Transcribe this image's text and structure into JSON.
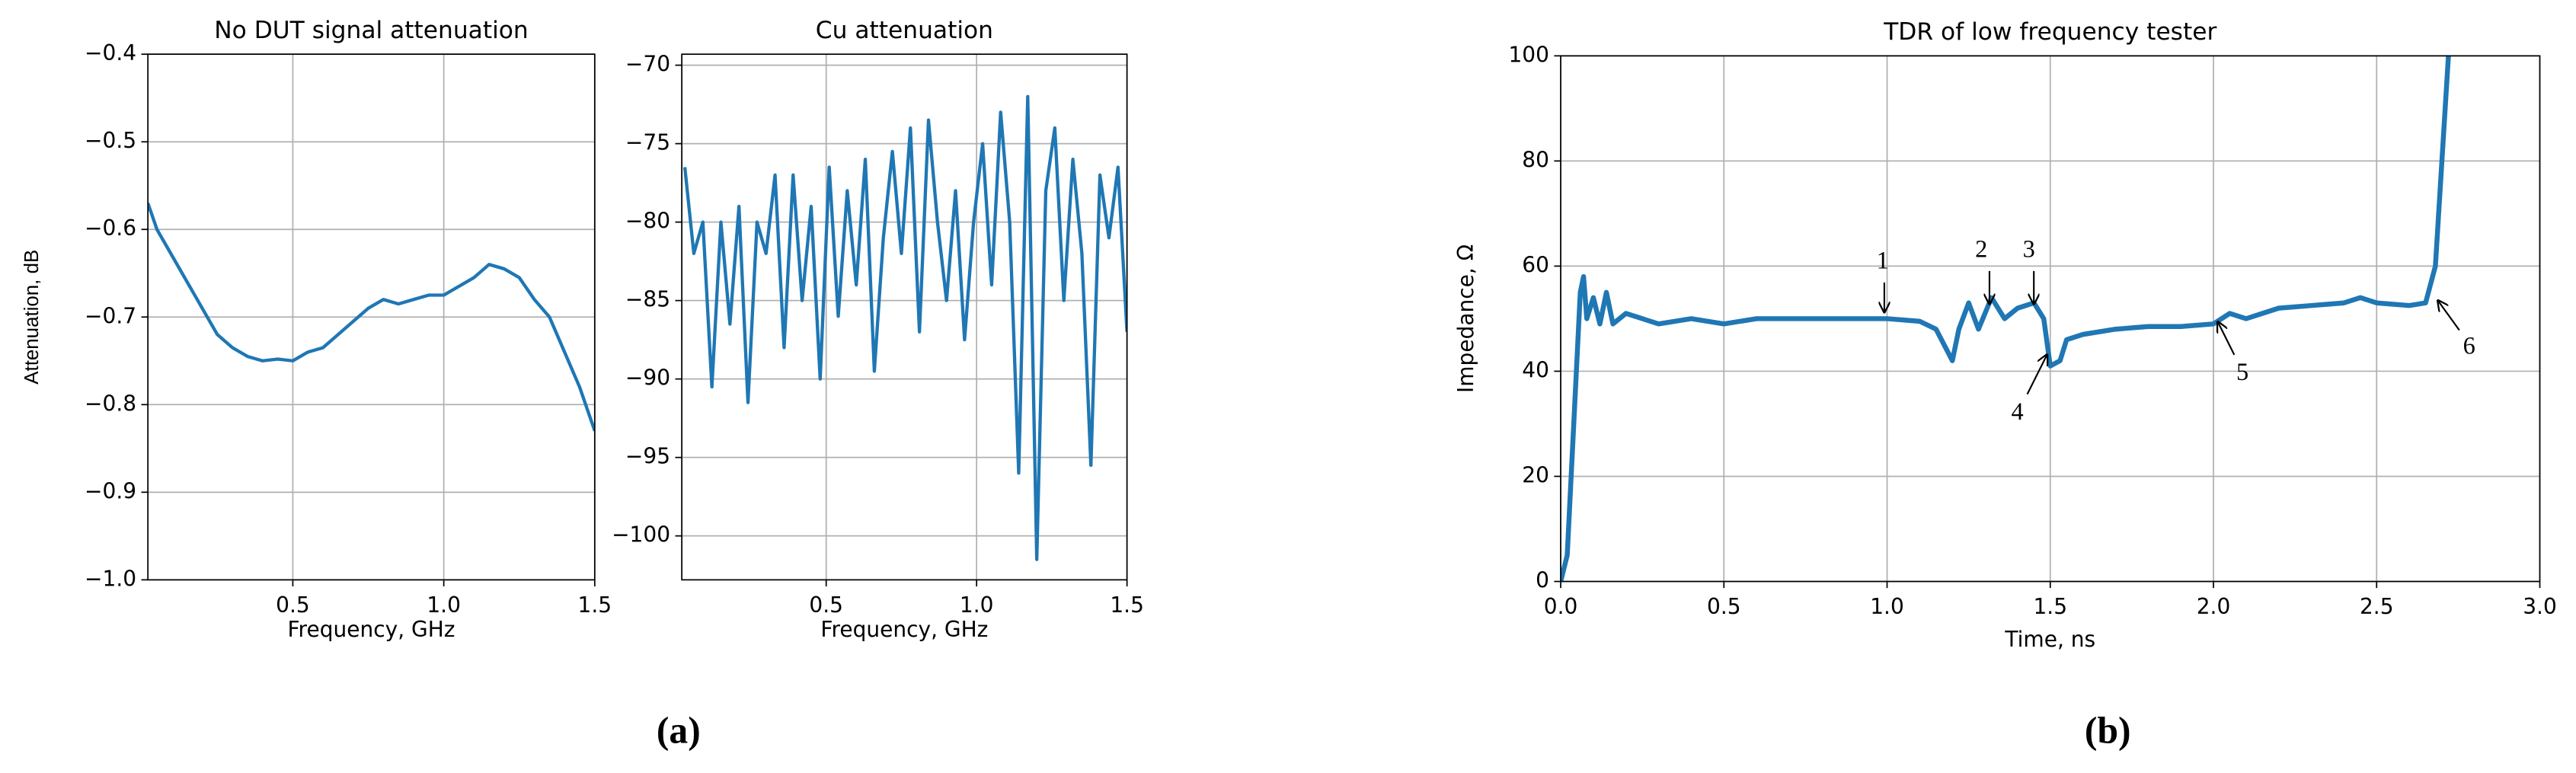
{
  "chart_data": [
    {
      "type": "line",
      "title": "No DUT signal attenuation",
      "xlabel": "Frequency, GHz",
      "ylabel": "Attenuation, dB",
      "x": [
        0.02,
        0.05,
        0.1,
        0.15,
        0.2,
        0.25,
        0.3,
        0.35,
        0.4,
        0.45,
        0.5,
        0.55,
        0.6,
        0.65,
        0.7,
        0.75,
        0.8,
        0.85,
        0.9,
        0.95,
        1.0,
        1.05,
        1.1,
        1.15,
        1.2,
        1.25,
        1.3,
        1.35,
        1.4,
        1.45,
        1.5
      ],
      "series": [
        {
          "color": "#1f77b4",
          "values": [
            -0.57,
            -0.6,
            -0.63,
            -0.66,
            -0.69,
            -0.72,
            -0.735,
            -0.745,
            -0.75,
            -0.748,
            -0.75,
            -0.74,
            -0.735,
            -0.72,
            -0.705,
            -0.69,
            -0.68,
            -0.685,
            -0.68,
            -0.675,
            -0.675,
            -0.665,
            -0.655,
            -0.64,
            -0.645,
            -0.655,
            -0.68,
            -0.7,
            -0.74,
            -0.78,
            -0.83
          ]
        }
      ],
      "xlim": [
        0.02,
        1.5
      ],
      "ylim": [
        -1.0,
        -0.4
      ],
      "grid": true,
      "xticks": [
        0.5,
        {
          "value": 1,
          "label": "1.0"
        },
        1.5
      ],
      "yticks": [
        {
          "value": -1.0,
          "label": "−1.0"
        },
        {
          "value": -0.9,
          "label": "−0.9"
        },
        {
          "value": -0.8,
          "label": "−0.8"
        },
        {
          "value": -0.7,
          "label": "−0.7"
        },
        {
          "value": -0.6,
          "label": "−0.6"
        },
        {
          "value": -0.5,
          "label": "−0.5"
        },
        {
          "value": -0.4,
          "label": "−0.4"
        }
      ]
    },
    {
      "type": "line",
      "title": "Cu attenuation",
      "xlabel": "Frequency, GHz",
      "x": [
        0.03,
        0.06,
        0.09,
        0.12,
        0.15,
        0.18,
        0.21,
        0.24,
        0.27,
        0.3,
        0.33,
        0.36,
        0.39,
        0.42,
        0.45,
        0.48,
        0.51,
        0.54,
        0.57,
        0.6,
        0.63,
        0.66,
        0.69,
        0.72,
        0.75,
        0.78,
        0.81,
        0.84,
        0.87,
        0.9,
        0.93,
        0.96,
        0.99,
        1.02,
        1.05,
        1.08,
        1.11,
        1.14,
        1.17,
        1.2,
        1.23,
        1.26,
        1.29,
        1.32,
        1.35,
        1.38,
        1.41,
        1.44,
        1.47,
        1.5
      ],
      "series": [
        {
          "color": "#1f77b4",
          "values": [
            -76.5,
            -82,
            -80,
            -90.5,
            -80,
            -86.5,
            -79,
            -91.5,
            -80,
            -82,
            -77,
            -88,
            -77,
            -85,
            -79,
            -90,
            -76.5,
            -86,
            -78,
            -84,
            -76,
            -89.5,
            -81,
            -75.5,
            -82,
            -74,
            -87,
            -73.5,
            -80,
            -85,
            -78,
            -87.5,
            -80,
            -75,
            -84,
            -73,
            -80,
            -96,
            -72,
            -101.5,
            -78,
            -74,
            -85,
            -76,
            -82,
            -95.5,
            -77,
            -81,
            -76.5,
            -87
          ]
        }
      ],
      "xlim": [
        0.02,
        1.5
      ],
      "ylim": [
        -102.8,
        -69.3
      ],
      "grid": true,
      "xticks": [
        0.5,
        {
          "value": 1,
          "label": "1.0"
        },
        1.5
      ],
      "yticks": [
        {
          "value": -100,
          "label": "−100"
        },
        {
          "value": -95,
          "label": "−95"
        },
        {
          "value": -90,
          "label": "−90"
        },
        {
          "value": -85,
          "label": "−85"
        },
        {
          "value": -80,
          "label": "−80"
        },
        {
          "value": -75,
          "label": "−75"
        },
        {
          "value": -70,
          "label": "−70"
        }
      ]
    },
    {
      "type": "line",
      "title": "TDR of low frequency tester",
      "xlabel": "Time, ns",
      "ylabel": "Impedance, Ω",
      "x": [
        0,
        0.02,
        0.04,
        0.06,
        0.07,
        0.08,
        0.1,
        0.12,
        0.14,
        0.16,
        0.2,
        0.3,
        0.4,
        0.5,
        0.6,
        0.8,
        1.0,
        1.1,
        1.15,
        1.2,
        1.22,
        1.25,
        1.28,
        1.32,
        1.36,
        1.4,
        1.45,
        1.48,
        1.5,
        1.53,
        1.55,
        1.6,
        1.7,
        1.8,
        1.9,
        2.0,
        2.05,
        2.1,
        2.2,
        2.3,
        2.4,
        2.45,
        2.5,
        2.6,
        2.65,
        2.68,
        2.7,
        2.72
      ],
      "series": [
        {
          "color": "#1f77b4",
          "values": [
            0,
            5,
            30,
            55,
            58,
            50,
            54,
            49,
            55,
            49,
            51,
            49,
            50,
            49,
            50,
            50,
            50,
            49.5,
            48,
            42,
            48,
            53,
            48,
            54,
            50,
            52,
            53,
            50,
            41,
            42,
            46,
            47,
            48,
            48.5,
            48.5,
            49,
            51,
            50,
            52,
            52.5,
            53,
            54,
            53,
            52.5,
            53,
            60,
            80,
            100
          ]
        }
      ],
      "xlim": [
        0,
        3
      ],
      "ylim": [
        0,
        100
      ],
      "grid": true,
      "xticks": [
        {
          "value": 0,
          "label": "0.0"
        },
        0.5,
        {
          "value": 1,
          "label": "1.0"
        },
        1.5,
        {
          "value": 2,
          "label": "2.0"
        },
        2.5,
        {
          "value": 3,
          "label": "3.0"
        }
      ],
      "yticks": [
        0,
        20,
        40,
        60,
        80,
        100
      ],
      "annotations": [
        "1",
        "2",
        "3",
        "4",
        "5",
        "6"
      ]
    }
  ],
  "captions": [
    "(a)",
    "(b)"
  ]
}
